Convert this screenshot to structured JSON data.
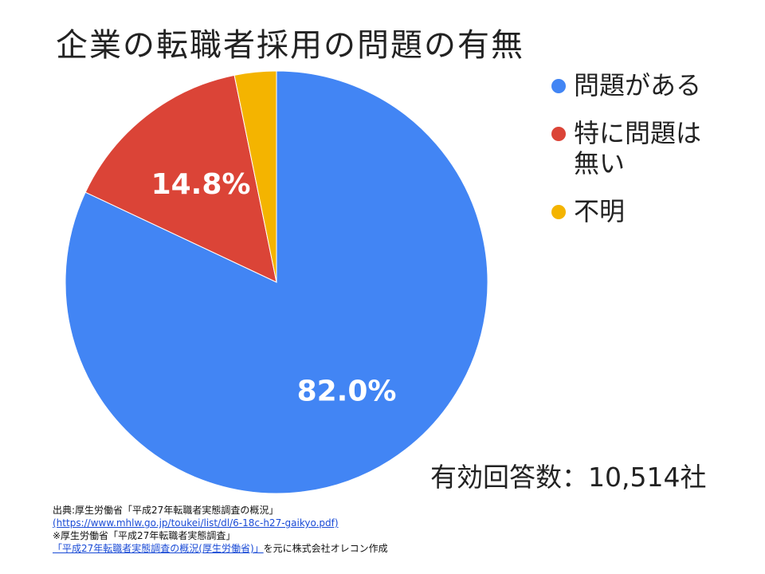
{
  "title": "企業の転職者採用の問題の有無",
  "chart_data": {
    "type": "pie",
    "title": "企業の転職者採用の問題の有無",
    "categories": [
      "問題がある",
      "特に問題は無い",
      "不明"
    ],
    "values": [
      82.0,
      14.8,
      3.2
    ],
    "colors": [
      "#4285f4",
      "#db4437",
      "#f4b400"
    ],
    "data_labels": [
      "82.0%",
      "14.8%",
      ""
    ],
    "legend_position": "right"
  },
  "legend": {
    "items": [
      {
        "label": "問題がある",
        "color": "#4285f4"
      },
      {
        "label": "特に問題は無い",
        "color": "#db4437"
      },
      {
        "label": "不明",
        "color": "#f4b400"
      }
    ]
  },
  "responses_label": "有効回答数：10,514社",
  "source": {
    "line1": "出典:厚生労働省「平成27年転職者実態調査の概況」",
    "line2_link": "(https://www.mhlw.go.jp/toukei/list/dl/6-18c-h27-gaikyo.pdf)",
    "line3": "※厚生労働省「平成27年転職者実態調査」",
    "line4_link": "「平成27年転職者実態調査の概況(厚生労働省)」",
    "line4_suffix": "を元に株式会社オレコン作成"
  }
}
